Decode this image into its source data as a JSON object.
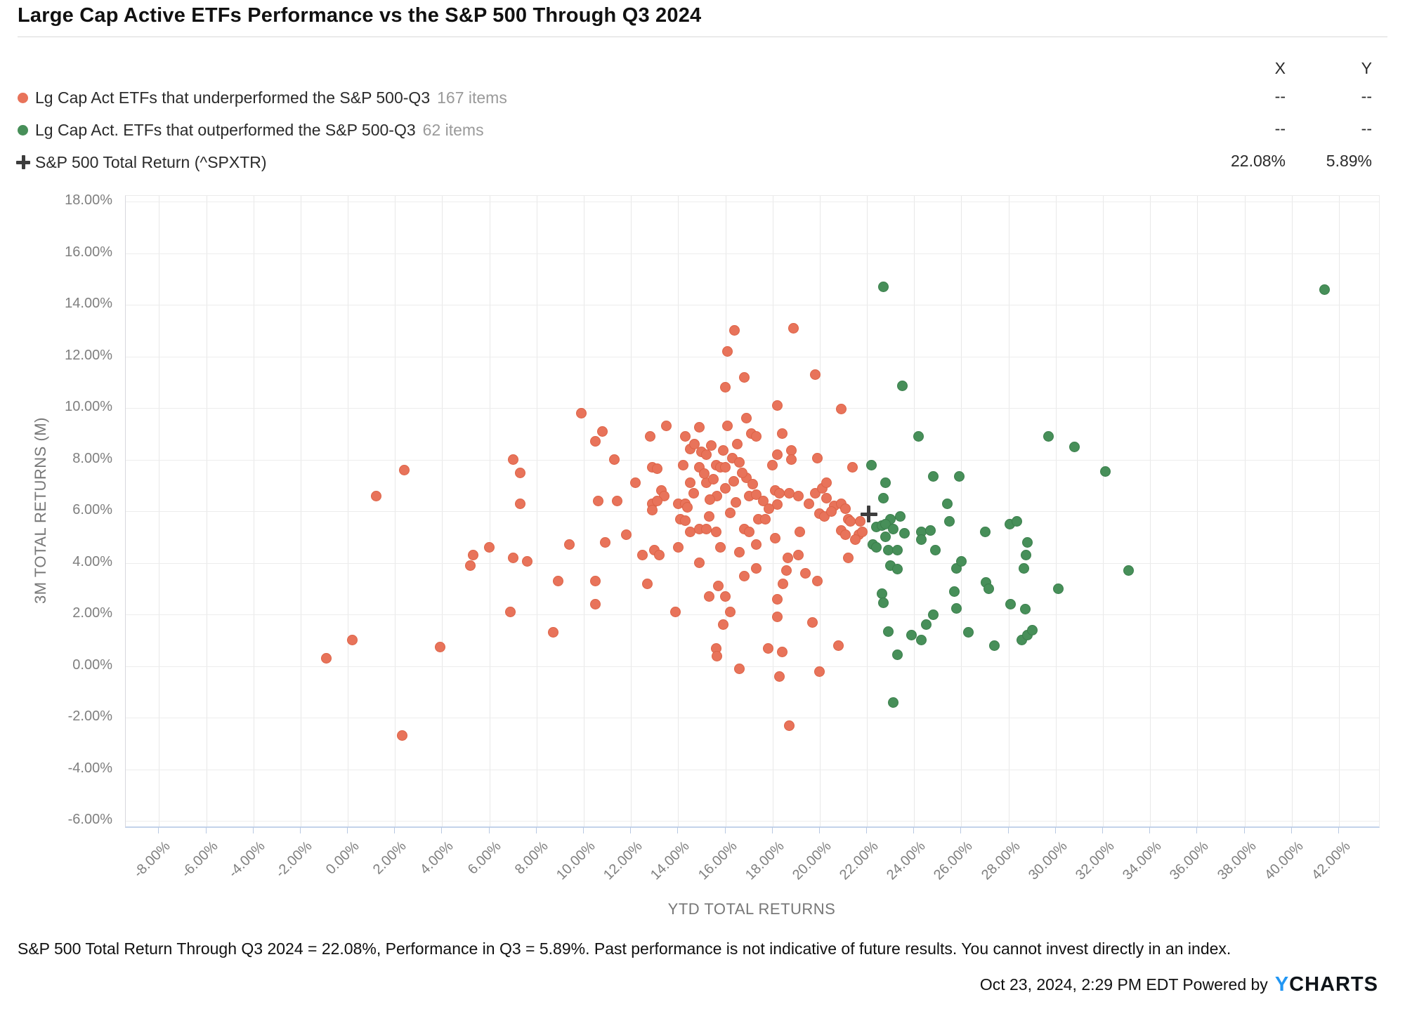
{
  "title": "Large Cap Active ETFs Performance vs the S&P 500 Through Q3 2024",
  "legend": {
    "items": [
      {
        "label": "Lg Cap Act ETFs that underperformed the S&P 500-Q3",
        "count": "167 items",
        "marker": "circle",
        "color": "#e8735a"
      },
      {
        "label": "Lg Cap Act. ETFs that outperformed the S&P 500-Q3",
        "count": "62 items",
        "marker": "circle",
        "color": "#478f59"
      },
      {
        "label": "S&P 500 Total Return (^SPXTR)",
        "count": "",
        "marker": "cross",
        "color": "#3d3d3d"
      }
    ]
  },
  "xy_table": {
    "x_header": "X",
    "y_header": "Y",
    "rows": [
      {
        "x": "--",
        "y": "--"
      },
      {
        "x": "--",
        "y": "--"
      },
      {
        "x": "22.08%",
        "y": "5.89%"
      }
    ]
  },
  "chart_data": {
    "type": "scatter",
    "title": "Large Cap Active ETFs Performance vs the S&P 500 Through Q3 2024",
    "xlabel": "YTD TOTAL RETURNS",
    "ylabel": "3M TOTAL RETURNS (M)",
    "xlim": [
      -9.41,
      43.7
    ],
    "ylim": [
      -6.21,
      18.22
    ],
    "x_ticks": [
      -8,
      -6,
      -4,
      -2,
      0,
      2,
      4,
      6,
      8,
      10,
      12,
      14,
      16,
      18,
      20,
      22,
      24,
      26,
      28,
      30,
      32,
      34,
      36,
      38,
      40,
      42
    ],
    "y_ticks": [
      18,
      16,
      14,
      12,
      10,
      8,
      6,
      4,
      2,
      0,
      -2,
      -4,
      -6
    ],
    "tick_format": "percent2",
    "grid": true,
    "legend_position": "top-left",
    "series": [
      {
        "name": "Lg Cap Act ETFs that underperformed the S&P 500-Q3",
        "marker": "circle",
        "color": "#e8735a",
        "stroke": "#dd6347",
        "points": [
          [
            16.4,
            13.0
          ],
          [
            16.1,
            12.2
          ],
          [
            16.8,
            11.2
          ],
          [
            16.0,
            10.8
          ],
          [
            9.9,
            9.8
          ],
          [
            10.8,
            9.1
          ],
          [
            10.5,
            8.7
          ],
          [
            13.5,
            9.3
          ],
          [
            14.9,
            9.25
          ],
          [
            16.1,
            9.3
          ],
          [
            16.9,
            9.6
          ],
          [
            18.9,
            13.1
          ],
          [
            19.8,
            11.3
          ],
          [
            18.2,
            10.1
          ],
          [
            20.9,
            9.95
          ],
          [
            2.4,
            7.6
          ],
          [
            1.2,
            6.6
          ],
          [
            0.2,
            1.0
          ],
          [
            -0.9,
            0.3
          ],
          [
            3.9,
            0.75
          ],
          [
            12.8,
            8.9
          ],
          [
            14.3,
            8.9
          ],
          [
            14.5,
            8.4
          ],
          [
            14.7,
            8.6
          ],
          [
            15.0,
            8.3
          ],
          [
            15.2,
            8.2
          ],
          [
            16.5,
            8.6
          ],
          [
            17.1,
            9.0
          ],
          [
            17.3,
            8.9
          ],
          [
            7.0,
            8.0
          ],
          [
            7.3,
            7.5
          ],
          [
            11.3,
            8.0
          ],
          [
            12.9,
            7.7
          ],
          [
            13.1,
            7.65
          ],
          [
            14.2,
            7.8
          ],
          [
            14.9,
            7.7
          ],
          [
            15.6,
            7.8
          ],
          [
            15.8,
            7.7
          ],
          [
            16.0,
            7.7
          ],
          [
            16.9,
            7.3
          ],
          [
            12.2,
            7.1
          ],
          [
            13.3,
            6.8
          ],
          [
            13.4,
            6.6
          ],
          [
            14.5,
            7.1
          ],
          [
            15.2,
            7.1
          ],
          [
            15.65,
            6.6
          ],
          [
            16.0,
            6.9
          ],
          [
            17.0,
            6.6
          ],
          [
            17.3,
            6.65
          ],
          [
            10.6,
            6.4
          ],
          [
            11.4,
            6.4
          ],
          [
            7.3,
            6.3
          ],
          [
            12.9,
            6.3
          ],
          [
            13.1,
            6.4
          ],
          [
            14.0,
            6.3
          ],
          [
            14.3,
            6.3
          ],
          [
            14.4,
            6.15
          ],
          [
            12.9,
            6.05
          ],
          [
            14.1,
            5.7
          ],
          [
            14.3,
            5.65
          ],
          [
            15.3,
            5.8
          ],
          [
            14.5,
            5.2
          ],
          [
            14.9,
            5.3
          ],
          [
            15.2,
            5.3
          ],
          [
            15.6,
            5.2
          ],
          [
            16.8,
            5.3
          ],
          [
            17.0,
            5.2
          ],
          [
            11.8,
            5.1
          ],
          [
            10.9,
            4.8
          ],
          [
            9.4,
            4.7
          ],
          [
            6.0,
            4.6
          ],
          [
            5.3,
            4.3
          ],
          [
            5.2,
            3.9
          ],
          [
            7.0,
            4.2
          ],
          [
            7.6,
            4.05
          ],
          [
            12.5,
            4.3
          ],
          [
            13.0,
            4.5
          ],
          [
            13.2,
            4.3
          ],
          [
            14.0,
            4.6
          ],
          [
            15.8,
            4.6
          ],
          [
            16.6,
            4.4
          ],
          [
            17.3,
            4.7
          ],
          [
            14.9,
            4.0
          ],
          [
            16.8,
            3.5
          ],
          [
            17.3,
            3.8
          ],
          [
            8.9,
            3.3
          ],
          [
            10.5,
            3.3
          ],
          [
            12.7,
            3.2
          ],
          [
            10.5,
            2.4
          ],
          [
            15.3,
            2.7
          ],
          [
            15.7,
            3.1
          ],
          [
            16.0,
            2.7
          ],
          [
            16.2,
            2.1
          ],
          [
            13.9,
            2.1
          ],
          [
            6.9,
            2.1
          ],
          [
            8.7,
            1.3
          ],
          [
            15.9,
            1.6
          ],
          [
            15.6,
            0.7
          ],
          [
            15.65,
            0.4
          ],
          [
            18.4,
            9.0
          ],
          [
            18.2,
            8.2
          ],
          [
            18.8,
            8.35
          ],
          [
            18.8,
            8.0
          ],
          [
            18.0,
            7.8
          ],
          [
            19.9,
            8.05
          ],
          [
            21.4,
            7.7
          ],
          [
            18.1,
            6.8
          ],
          [
            18.3,
            6.7
          ],
          [
            18.7,
            6.7
          ],
          [
            19.1,
            6.6
          ],
          [
            18.2,
            6.25
          ],
          [
            19.55,
            6.3
          ],
          [
            19.8,
            6.7
          ],
          [
            20.1,
            6.9
          ],
          [
            20.3,
            7.1
          ],
          [
            20.3,
            6.5
          ],
          [
            20.6,
            6.2
          ],
          [
            20.9,
            6.3
          ],
          [
            21.1,
            6.1
          ],
          [
            20.0,
            5.9
          ],
          [
            20.2,
            5.8
          ],
          [
            20.5,
            6.0
          ],
          [
            21.2,
            5.7
          ],
          [
            21.3,
            5.6
          ],
          [
            21.7,
            5.6
          ],
          [
            20.9,
            5.25
          ],
          [
            21.1,
            5.1
          ],
          [
            21.65,
            5.1
          ],
          [
            21.8,
            5.2
          ],
          [
            21.5,
            4.9
          ],
          [
            19.15,
            5.2
          ],
          [
            18.1,
            4.95
          ],
          [
            17.4,
            5.7
          ],
          [
            17.7,
            5.7
          ],
          [
            19.1,
            4.3
          ],
          [
            18.65,
            4.2
          ],
          [
            21.2,
            4.2
          ],
          [
            18.6,
            3.7
          ],
          [
            19.4,
            3.6
          ],
          [
            18.45,
            3.2
          ],
          [
            19.9,
            3.3
          ],
          [
            18.2,
            2.6
          ],
          [
            18.2,
            1.9
          ],
          [
            19.7,
            1.7
          ],
          [
            20.8,
            0.8
          ],
          [
            17.8,
            0.7
          ],
          [
            18.4,
            0.55
          ],
          [
            2.3,
            -2.7
          ],
          [
            16.6,
            -0.1
          ],
          [
            20.0,
            -0.2
          ],
          [
            18.3,
            -0.4
          ],
          [
            18.7,
            -2.3
          ],
          [
            15.4,
            8.55
          ],
          [
            15.9,
            8.35
          ],
          [
            16.3,
            8.05
          ],
          [
            16.6,
            7.9
          ],
          [
            15.1,
            7.45
          ],
          [
            15.5,
            7.25
          ],
          [
            16.35,
            7.15
          ],
          [
            16.7,
            7.5
          ],
          [
            17.15,
            7.05
          ],
          [
            16.45,
            6.35
          ],
          [
            15.35,
            6.45
          ],
          [
            14.65,
            6.7
          ],
          [
            17.6,
            6.4
          ],
          [
            17.85,
            6.1
          ],
          [
            16.2,
            5.95
          ]
        ]
      },
      {
        "name": "Lg Cap Act. ETFs that outperformed the S&P 500-Q3",
        "marker": "circle",
        "color": "#478f59",
        "stroke": "#3b7f4c",
        "points": [
          [
            22.7,
            14.7
          ],
          [
            41.4,
            14.6
          ],
          [
            23.5,
            10.85
          ],
          [
            24.2,
            8.9
          ],
          [
            29.7,
            8.9
          ],
          [
            30.8,
            8.5
          ],
          [
            32.1,
            7.55
          ],
          [
            22.2,
            7.8
          ],
          [
            24.8,
            7.35
          ],
          [
            25.9,
            7.35
          ],
          [
            22.8,
            7.1
          ],
          [
            22.7,
            6.5
          ],
          [
            25.4,
            6.3
          ],
          [
            23.0,
            5.7
          ],
          [
            23.4,
            5.8
          ],
          [
            25.5,
            5.6
          ],
          [
            27.0,
            5.2
          ],
          [
            28.05,
            5.5
          ],
          [
            28.35,
            5.6
          ],
          [
            22.4,
            5.4
          ],
          [
            22.65,
            5.45
          ],
          [
            22.8,
            5.5
          ],
          [
            22.8,
            5.0
          ],
          [
            23.1,
            5.3
          ],
          [
            24.3,
            5.2
          ],
          [
            24.7,
            5.25
          ],
          [
            24.3,
            4.9
          ],
          [
            24.9,
            4.5
          ],
          [
            22.25,
            4.7
          ],
          [
            22.4,
            4.6
          ],
          [
            22.9,
            4.5
          ],
          [
            23.3,
            4.5
          ],
          [
            28.8,
            4.8
          ],
          [
            28.75,
            4.3
          ],
          [
            28.65,
            3.8
          ],
          [
            23.0,
            3.9
          ],
          [
            23.3,
            3.75
          ],
          [
            25.8,
            3.8
          ],
          [
            33.1,
            3.7
          ],
          [
            27.05,
            3.25
          ],
          [
            27.15,
            3.0
          ],
          [
            25.7,
            2.9
          ],
          [
            30.1,
            3.0
          ],
          [
            22.65,
            2.8
          ],
          [
            22.7,
            2.45
          ],
          [
            25.8,
            2.25
          ],
          [
            28.1,
            2.4
          ],
          [
            28.7,
            2.2
          ],
          [
            24.8,
            2.0
          ],
          [
            24.5,
            1.6
          ],
          [
            22.9,
            1.35
          ],
          [
            23.9,
            1.2
          ],
          [
            24.3,
            1.0
          ],
          [
            26.3,
            1.3
          ],
          [
            27.4,
            0.8
          ],
          [
            28.55,
            1.0
          ],
          [
            28.8,
            1.2
          ],
          [
            29.0,
            1.4
          ],
          [
            23.3,
            0.45
          ],
          [
            23.1,
            -1.4
          ],
          [
            23.6,
            5.15
          ],
          [
            26.0,
            4.05
          ]
        ]
      },
      {
        "name": "S&P 500 Total Return (^SPXTR)",
        "marker": "cross",
        "color": "#3d3d3d",
        "points": [
          [
            22.08,
            5.89
          ]
        ]
      }
    ]
  },
  "footer": {
    "disclaimer": "S&P 500 Total Return Through Q3 2024 = 22.08%, Performance in Q3 = 5.89%. Past performance is not indicative of future results. You cannot invest directly in an index.",
    "timestamp": "Oct 23, 2024, 2:29 PM EDT Powered by",
    "logo_y": "Y",
    "logo_rest": "CHARTS"
  }
}
